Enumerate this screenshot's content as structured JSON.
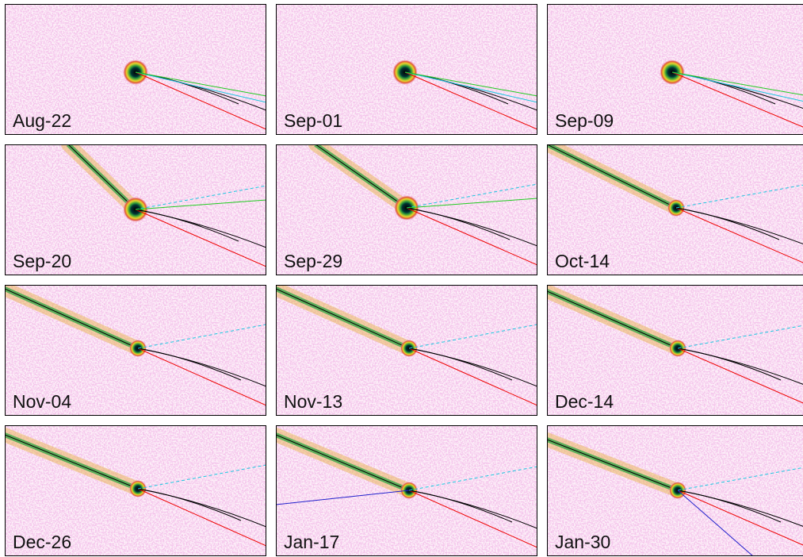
{
  "panels": [
    {
      "label": "Aug-22"
    },
    {
      "label": "Sep-01"
    },
    {
      "label": "Sep-09"
    },
    {
      "label": "Sep-20"
    },
    {
      "label": "Sep-29"
    },
    {
      "label": "Oct-14"
    },
    {
      "label": "Nov-04"
    },
    {
      "label": "Nov-13"
    },
    {
      "label": "Dec-14"
    },
    {
      "label": "Dec-26"
    },
    {
      "label": "Jan-17"
    },
    {
      "label": "Jan-30"
    }
  ]
}
